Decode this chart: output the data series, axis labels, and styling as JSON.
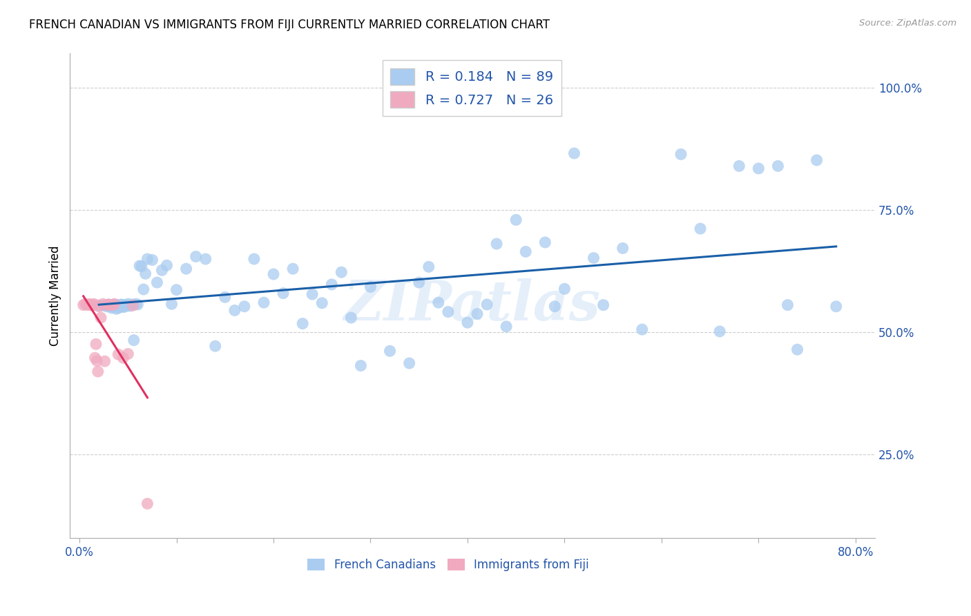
{
  "title": "FRENCH CANADIAN VS IMMIGRANTS FROM FIJI CURRENTLY MARRIED CORRELATION CHART",
  "source": "Source: ZipAtlas.com",
  "ylabel": "Currently Married",
  "ytick_labels": [
    "25.0%",
    "50.0%",
    "75.0%",
    "100.0%"
  ],
  "ytick_values": [
    0.25,
    0.5,
    0.75,
    1.0
  ],
  "xlim": [
    -0.01,
    0.82
  ],
  "ylim": [
    0.08,
    1.07
  ],
  "R_blue": 0.184,
  "N_blue": 89,
  "R_pink": 0.727,
  "N_pink": 26,
  "legend_label_blue": "French Canadians",
  "legend_label_pink": "Immigrants from Fiji",
  "blue_color": "#aaccf0",
  "pink_color": "#f0aac0",
  "blue_line_color": "#1a5fa8",
  "pink_line_color": "#e03060",
  "watermark": "ZIPatlas",
  "blue_scatter_x": [
    0.02,
    0.025,
    0.028,
    0.03,
    0.032,
    0.033,
    0.034,
    0.035,
    0.036,
    0.037,
    0.038,
    0.039,
    0.04,
    0.041,
    0.042,
    0.043,
    0.044,
    0.045,
    0.046,
    0.047,
    0.048,
    0.05,
    0.052,
    0.054,
    0.056,
    0.058,
    0.06,
    0.062,
    0.064,
    0.066,
    0.068,
    0.07,
    0.075,
    0.08,
    0.085,
    0.09,
    0.095,
    0.1,
    0.11,
    0.12,
    0.13,
    0.14,
    0.15,
    0.16,
    0.17,
    0.18,
    0.19,
    0.2,
    0.21,
    0.22,
    0.23,
    0.24,
    0.25,
    0.26,
    0.27,
    0.28,
    0.29,
    0.3,
    0.32,
    0.34,
    0.35,
    0.36,
    0.37,
    0.38,
    0.4,
    0.41,
    0.42,
    0.43,
    0.44,
    0.45,
    0.46,
    0.48,
    0.49,
    0.5,
    0.51,
    0.53,
    0.54,
    0.56,
    0.58,
    0.62,
    0.64,
    0.66,
    0.68,
    0.7,
    0.72,
    0.73,
    0.74,
    0.76,
    0.78
  ],
  "blue_scatter_y": [
    0.555,
    0.555,
    0.553,
    0.557,
    0.553,
    0.55,
    0.556,
    0.552,
    0.555,
    0.556,
    0.548,
    0.554,
    0.55,
    0.556,
    0.553,
    0.557,
    0.552,
    0.556,
    0.552,
    0.556,
    0.554,
    0.558,
    0.554,
    0.557,
    0.484,
    0.558,
    0.557,
    0.636,
    0.635,
    0.588,
    0.62,
    0.65,
    0.648,
    0.602,
    0.627,
    0.637,
    0.558,
    0.587,
    0.63,
    0.655,
    0.65,
    0.472,
    0.572,
    0.545,
    0.553,
    0.65,
    0.561,
    0.619,
    0.58,
    0.63,
    0.518,
    0.578,
    0.56,
    0.598,
    0.623,
    0.53,
    0.432,
    0.593,
    0.462,
    0.437,
    0.602,
    0.634,
    0.561,
    0.542,
    0.52,
    0.538,
    0.557,
    0.681,
    0.512,
    0.73,
    0.665,
    0.684,
    0.553,
    0.589,
    0.866,
    0.652,
    0.556,
    0.672,
    0.506,
    0.864,
    0.712,
    0.502,
    0.84,
    0.835,
    0.84,
    0.556,
    0.465,
    0.852,
    0.553
  ],
  "pink_scatter_x": [
    0.004,
    0.006,
    0.008,
    0.01,
    0.012,
    0.013,
    0.014,
    0.015,
    0.016,
    0.017,
    0.018,
    0.019,
    0.02,
    0.022,
    0.024,
    0.026,
    0.028,
    0.03,
    0.032,
    0.034,
    0.036,
    0.04,
    0.045,
    0.05,
    0.055,
    0.07
  ],
  "pink_scatter_y": [
    0.556,
    0.558,
    0.556,
    0.558,
    0.556,
    0.555,
    0.556,
    0.558,
    0.448,
    0.476,
    0.442,
    0.42,
    0.553,
    0.53,
    0.558,
    0.441,
    0.556,
    0.557,
    0.556,
    0.556,
    0.558,
    0.455,
    0.448,
    0.456,
    0.555,
    0.15
  ]
}
